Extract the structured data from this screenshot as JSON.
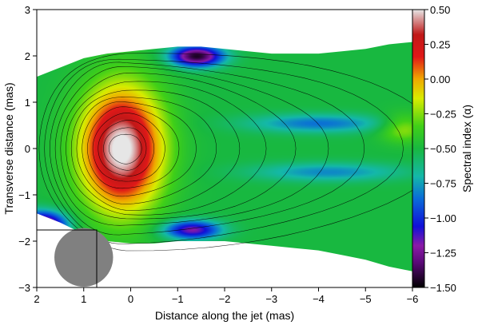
{
  "chart_data": {
    "type": "heatmap",
    "xlabel": "Distance along the jet (mas)",
    "ylabel": "Transverse distance (mas)",
    "colorbar_label": "Spectral index (α)",
    "xlim": [
      2,
      -6
    ],
    "ylim": [
      -3,
      3
    ],
    "clim": [
      -1.5,
      0.5
    ],
    "x_ticks": [
      {
        "v": 2,
        "label": "2"
      },
      {
        "v": 1,
        "label": "1"
      },
      {
        "v": 0,
        "label": "0"
      },
      {
        "v": -1,
        "label": "−1"
      },
      {
        "v": -2,
        "label": "−2"
      },
      {
        "v": -3,
        "label": "−3"
      },
      {
        "v": -4,
        "label": "−4"
      },
      {
        "v": -5,
        "label": "−5"
      },
      {
        "v": -6,
        "label": "−6"
      }
    ],
    "y_ticks": [
      {
        "v": 3,
        "label": "3"
      },
      {
        "v": 2,
        "label": "2"
      },
      {
        "v": 1,
        "label": "1"
      },
      {
        "v": 0,
        "label": "0"
      },
      {
        "v": -1,
        "label": "−1"
      },
      {
        "v": -2,
        "label": "−2"
      },
      {
        "v": -3,
        "label": "−3"
      }
    ],
    "colorbar_ticks": [
      {
        "v": 0.5,
        "label": "0.50"
      },
      {
        "v": 0.25,
        "label": "0.25"
      },
      {
        "v": 0.0,
        "label": "0.00"
      },
      {
        "v": -0.25,
        "label": "−0.25"
      },
      {
        "v": -0.5,
        "label": "−0.50"
      },
      {
        "v": -0.75,
        "label": "−0.75"
      },
      {
        "v": -1.0,
        "label": "−1.00"
      },
      {
        "v": -1.25,
        "label": "−1.25"
      },
      {
        "v": -1.5,
        "label": "−1.50"
      }
    ],
    "colormap": [
      [
        0.0,
        "#000000"
      ],
      [
        0.09,
        "#5a0a78"
      ],
      [
        0.15,
        "#8a1aa6"
      ],
      [
        0.22,
        "#1010d8"
      ],
      [
        0.32,
        "#0a6cd8"
      ],
      [
        0.4,
        "#14b8a8"
      ],
      [
        0.5,
        "#18b840"
      ],
      [
        0.58,
        "#40d018"
      ],
      [
        0.68,
        "#d8ec00"
      ],
      [
        0.75,
        "#f0a800"
      ],
      [
        0.83,
        "#e01818"
      ],
      [
        0.91,
        "#c01818"
      ],
      [
        1.0,
        "#e6e6e6"
      ]
    ],
    "beam": {
      "x": 1.0,
      "y": -2.35,
      "diameter": 1.25,
      "color": "#808080"
    },
    "jet_edge": {
      "x": [
        2.0,
        1.5,
        1.0,
        0.5,
        0.0,
        -0.5,
        -1.0,
        -1.5,
        -2.0,
        -2.5,
        -3.0,
        -3.5,
        -4.0,
        -4.5,
        -5.0,
        -5.5,
        -6.0
      ],
      "upper": [
        1.55,
        1.75,
        1.95,
        2.05,
        2.1,
        2.15,
        2.2,
        2.2,
        2.15,
        2.1,
        2.05,
        2.05,
        2.05,
        2.1,
        2.15,
        2.25,
        2.3
      ],
      "lower": [
        -1.4,
        -1.6,
        -1.85,
        -2.0,
        -2.05,
        -2.05,
        -2.0,
        -2.0,
        -2.0,
        -2.05,
        -2.1,
        -2.15,
        -2.2,
        -2.3,
        -2.4,
        -2.55,
        -2.65
      ]
    },
    "features": [
      {
        "x": 0.2,
        "y": 0.0,
        "sx": 0.85,
        "sy": 1.3,
        "alpha": 0.55
      },
      {
        "x": -1.4,
        "y": 2.0,
        "sx": 0.55,
        "sy": 0.22,
        "alpha": -1.45
      },
      {
        "x": -1.3,
        "y": -1.75,
        "sx": 0.6,
        "sy": 0.2,
        "alpha": -1.2
      },
      {
        "x": 1.9,
        "y": -1.65,
        "sx": 0.5,
        "sy": 0.28,
        "alpha": -1.5
      },
      {
        "x": -4.0,
        "y": 0.55,
        "sx": 1.5,
        "sy": 0.2,
        "alpha": -0.85
      },
      {
        "x": -4.2,
        "y": -0.5,
        "sx": 1.6,
        "sy": 0.2,
        "alpha": -0.8
      },
      {
        "x": -5.8,
        "y": 0.45,
        "sx": 0.5,
        "sy": 0.3,
        "alpha": -0.2
      }
    ],
    "base_alpha": -0.5,
    "contour_levels": 14
  }
}
